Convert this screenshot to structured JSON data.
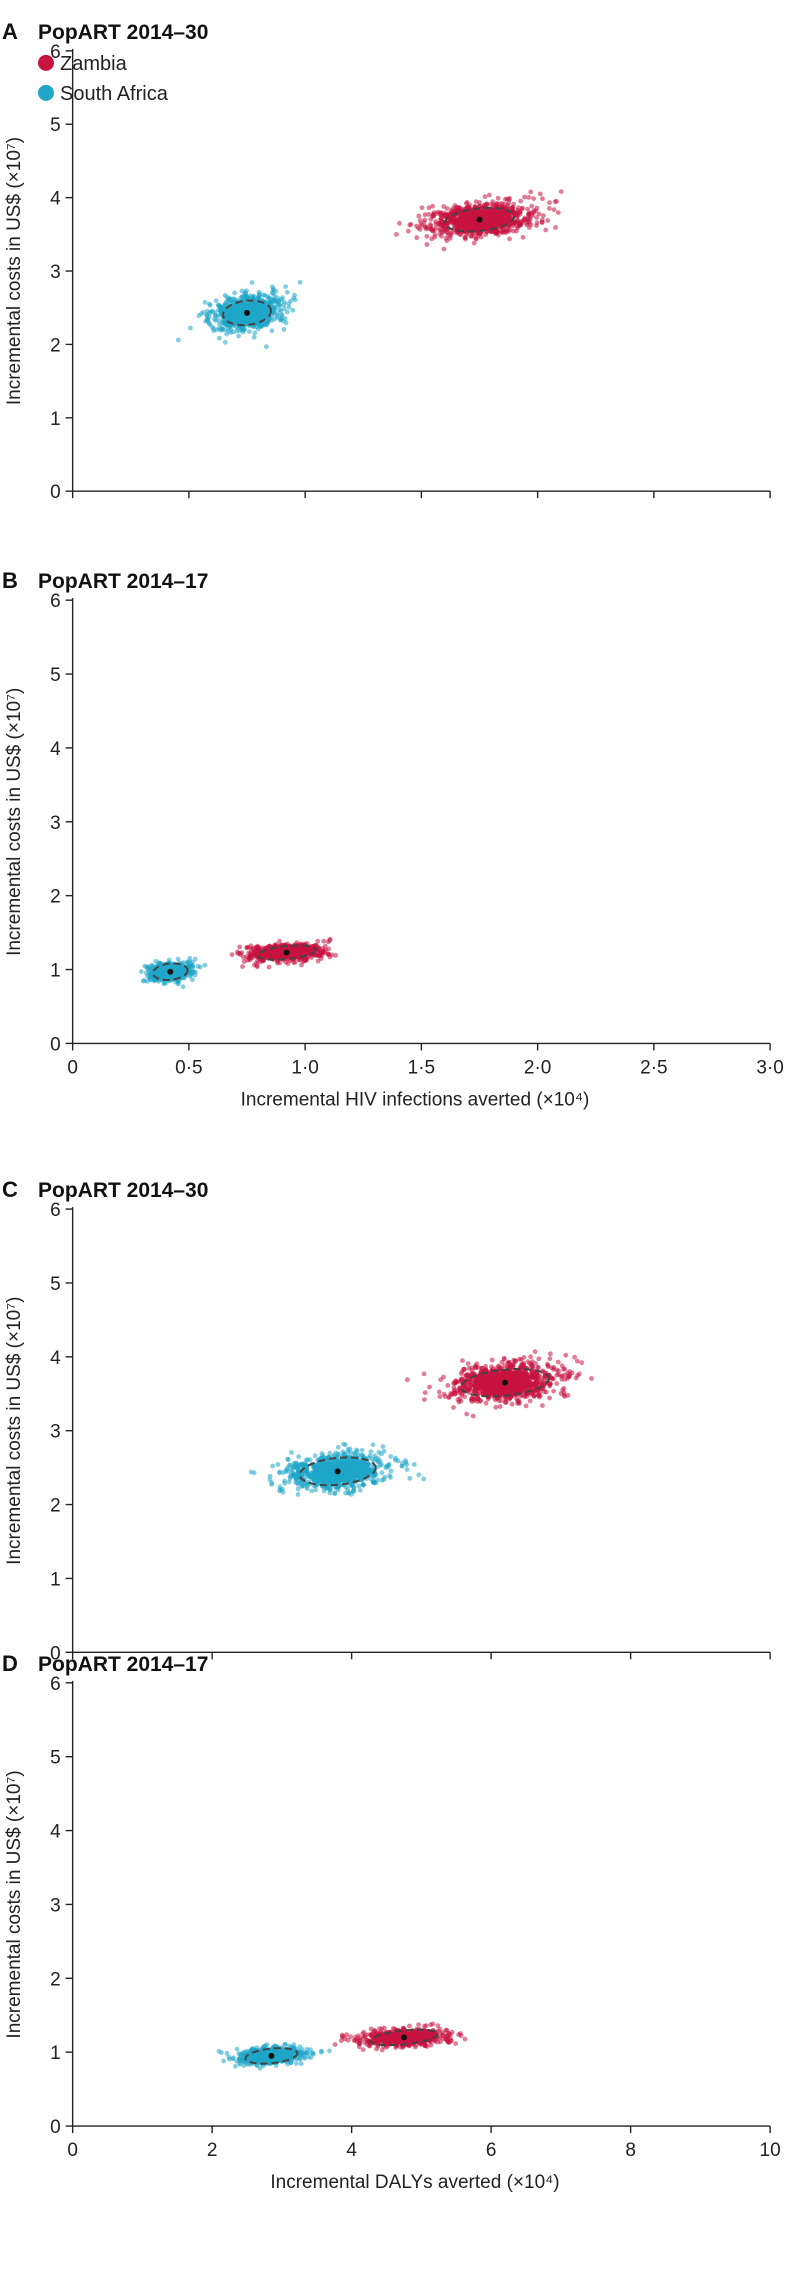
{
  "colors": {
    "zambia": "#c8133f",
    "south_africa": "#1fa6c9"
  },
  "legend": [
    {
      "label": "Zambia",
      "color": "#c8133f"
    },
    {
      "label": "South Africa",
      "color": "#1fa6c9"
    }
  ],
  "chart_data": [
    {
      "type": "scatter",
      "panel": "A",
      "title": "PopART 2014–30",
      "ylabel": "Incremental costs in US$ (×10⁷)",
      "xlabel": "",
      "xlim": [
        0,
        3.0
      ],
      "ylim": [
        0,
        6
      ],
      "xticks": [],
      "yticks": [
        "0",
        "1",
        "2",
        "3",
        "4",
        "5",
        "6"
      ],
      "series": [
        {
          "name": "Zambia",
          "mean": [
            1.75,
            3.7
          ],
          "sd": [
            0.13,
            0.14
          ],
          "n": 550,
          "ellipse": [
            1.75,
            3.7,
            0.26,
            0.28
          ]
        },
        {
          "name": "South Africa",
          "mean": [
            0.75,
            2.43
          ],
          "sd": [
            0.08,
            0.14
          ],
          "n": 550,
          "ellipse": [
            0.75,
            2.43,
            0.18,
            0.3
          ]
        }
      ]
    },
    {
      "type": "scatter",
      "panel": "B",
      "title": "PopART 2014–17",
      "ylabel": "Incremental costs in US$ (×10⁷)",
      "xlabel": "Incremental HIV infections averted (×10⁴)",
      "xlim": [
        0,
        3.0
      ],
      "ylim": [
        0,
        6
      ],
      "xticks": [
        "0",
        "0·5",
        "1·0",
        "1·5",
        "2·0",
        "2·5",
        "3·0"
      ],
      "yticks": [
        "0",
        "1",
        "2",
        "3",
        "4",
        "5",
        "6"
      ],
      "series": [
        {
          "name": "Zambia",
          "mean": [
            0.92,
            1.23
          ],
          "sd": [
            0.09,
            0.07
          ],
          "n": 450,
          "ellipse": [
            0.92,
            1.23,
            0.22,
            0.16
          ]
        },
        {
          "name": "South Africa",
          "mean": [
            0.42,
            0.97
          ],
          "sd": [
            0.05,
            0.07
          ],
          "n": 450,
          "ellipse": [
            0.42,
            0.97,
            0.13,
            0.2
          ]
        }
      ]
    },
    {
      "type": "scatter",
      "panel": "C",
      "title": "PopART 2014–30",
      "ylabel": "Incremental costs in US$ (×10⁷)",
      "xlabel": "",
      "xlim": [
        0,
        10
      ],
      "ylim": [
        0,
        6
      ],
      "xticks": [],
      "yticks": [
        "0",
        "1",
        "2",
        "3",
        "4",
        "5",
        "6"
      ],
      "series": [
        {
          "name": "Zambia",
          "mean": [
            6.2,
            3.65
          ],
          "sd": [
            0.45,
            0.16
          ],
          "n": 550,
          "ellipse": [
            6.2,
            3.65,
            1.1,
            0.32
          ]
        },
        {
          "name": "South Africa",
          "mean": [
            3.8,
            2.45
          ],
          "sd": [
            0.4,
            0.15
          ],
          "n": 550,
          "ellipse": [
            3.8,
            2.45,
            0.95,
            0.33
          ]
        }
      ]
    },
    {
      "type": "scatter",
      "panel": "D",
      "title": "PopART 2014–17",
      "ylabel": "Incremental costs in US$ (×10⁷)",
      "xlabel": "Incremental DALYs averted (×10⁴)",
      "xlim": [
        0,
        10
      ],
      "ylim": [
        0,
        6
      ],
      "xticks": [
        "0",
        "2",
        "4",
        "6",
        "8",
        "10"
      ],
      "yticks": [
        "0",
        "1",
        "2",
        "3",
        "4",
        "5",
        "6"
      ],
      "series": [
        {
          "name": "Zambia",
          "mean": [
            4.75,
            1.2
          ],
          "sd": [
            0.35,
            0.07
          ],
          "n": 450,
          "ellipse": [
            4.75,
            1.2,
            0.85,
            0.17
          ]
        },
        {
          "name": "South Africa",
          "mean": [
            2.85,
            0.95
          ],
          "sd": [
            0.25,
            0.07
          ],
          "n": 450,
          "ellipse": [
            2.85,
            0.95,
            0.65,
            0.18
          ]
        }
      ]
    }
  ]
}
